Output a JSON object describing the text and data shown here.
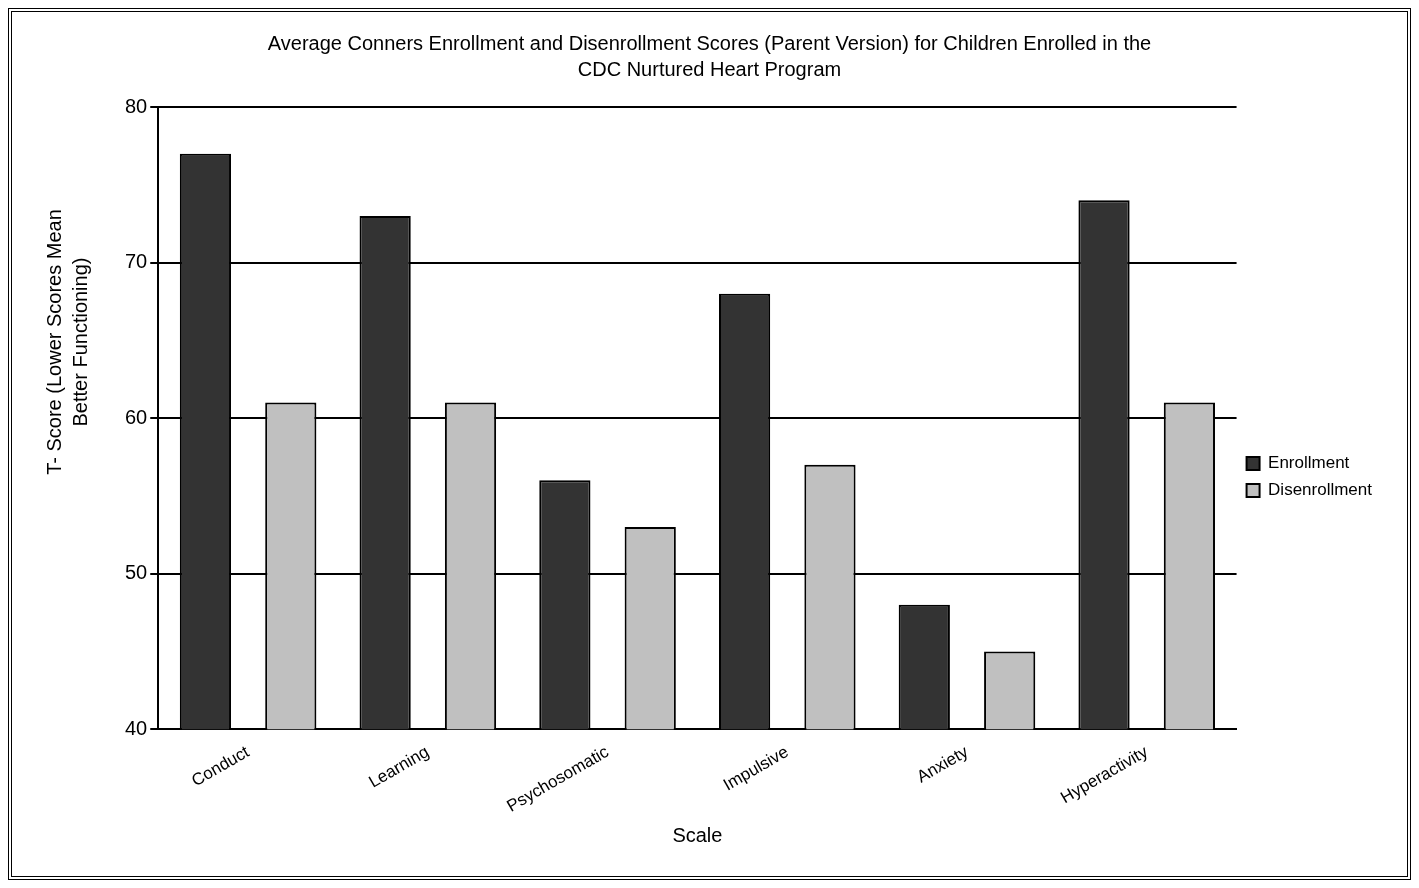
{
  "chart_data": {
    "type": "bar",
    "title": "Average Conners Enrollment and Disenrollment Scores (Parent Version) for Children Enrolled in the CDC Nurtured Heart Program",
    "xlabel": "Scale",
    "ylabel": "T- Score (Lower Scores Mean Better Functioning)",
    "categories": [
      "Conduct",
      "Learning",
      "Psychosomatic",
      "Impulsive",
      "Anxiety",
      "Hyperactivity"
    ],
    "series": [
      {
        "name": "Enrollment",
        "color": "#333333",
        "values": [
          77,
          73,
          56,
          68,
          48,
          74
        ]
      },
      {
        "name": "Disenrollment",
        "color": "#c0c0c0",
        "values": [
          61,
          61,
          53,
          57,
          45,
          61
        ]
      }
    ],
    "ylim": [
      40,
      80
    ],
    "yticks": [
      40,
      50,
      60,
      70,
      80
    ],
    "grid": "y",
    "legend": "right"
  }
}
